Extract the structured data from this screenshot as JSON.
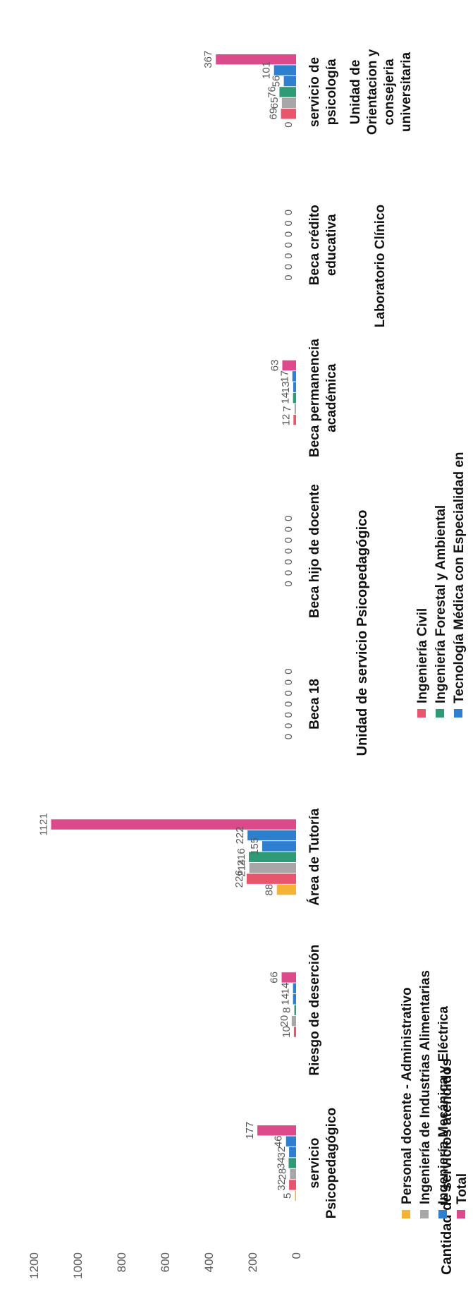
{
  "chart_data": {
    "type": "bar",
    "title": "",
    "ylabel": "Cantidad de servicios atendidos",
    "xlabel": "Unidad de servicio Psicopedagógico",
    "ylim": [
      0,
      1200
    ],
    "yticks": [
      0,
      200,
      400,
      600,
      800,
      1000,
      1200
    ],
    "grid": false,
    "legend_position": "bottom",
    "categories": [
      [
        "servicio",
        "Psicopedagógico"
      ],
      [
        "Riesgo de deserción"
      ],
      [
        "Área de Tutoría"
      ],
      [
        "Beca 18"
      ],
      [
        "Beca hijo de docente"
      ],
      [
        "Beca permanencia",
        "académica"
      ],
      [
        "Beca crédito",
        "educativa"
      ],
      [
        "servicio de",
        "psicología"
      ]
    ],
    "extra_category_text": [
      [
        "Unidad de",
        "Orientacion y",
        "consejeria",
        "universitaria"
      ],
      [
        "Laboratorio Clínico"
      ]
    ],
    "series": [
      {
        "name": "Personal docente - Administrativo",
        "color": "#f5b335",
        "values": [
          5,
          0,
          88,
          0,
          0,
          0,
          0,
          0
        ]
      },
      {
        "name": "Ingeniería Civil",
        "color": "#e8566e",
        "values": [
          32,
          10,
          226,
          0,
          0,
          12,
          0,
          69
        ]
      },
      {
        "name": "Ingeniería de Industrias Alimentarias",
        "color": "#a7a7a7",
        "values": [
          28,
          20,
          214,
          0,
          0,
          7,
          0,
          65
        ]
      },
      {
        "name": "Ingeniería Forestal y Ambiental",
        "color": "#2e9a76",
        "values": [
          34,
          8,
          216,
          0,
          0,
          14,
          0,
          76
        ]
      },
      {
        "name": "Ingeniería Mecánica y Eléctrica",
        "color": "#2f7fd0",
        "values": [
          32,
          14,
          155,
          0,
          0,
          13,
          0,
          56
        ]
      },
      {
        "name": "Tecnología Médica con Especialidad en",
        "color": "#2f7fd0",
        "values": [
          46,
          14,
          222,
          0,
          0,
          17,
          0,
          101
        ]
      },
      {
        "name": "Total",
        "color": "#dc4a8c",
        "values": [
          177,
          66,
          1121,
          0,
          0,
          63,
          0,
          367
        ]
      }
    ],
    "visible_data_labels": [
      [
        "5",
        "32",
        "28",
        "34",
        "32",
        "46",
        "177"
      ],
      [
        "",
        "10",
        "20",
        "8",
        "14",
        "14",
        "66"
      ],
      [
        "88",
        "226",
        "214",
        "216",
        "155",
        "222",
        "1121"
      ],
      [
        "0",
        "0",
        "0",
        "0",
        "0",
        "0",
        "0"
      ],
      [
        "0",
        "0",
        "0",
        "0",
        "0",
        "0",
        "0"
      ],
      [
        "",
        "12",
        "7",
        "14",
        "13",
        "17",
        "63"
      ],
      [
        "0",
        "0",
        "0",
        "0",
        "0",
        "0",
        "0"
      ],
      [
        "0",
        "69",
        "65",
        "76",
        "56",
        "101",
        "367"
      ]
    ],
    "legend_left": [
      "Personal docente - Administrativo",
      "Ingeniería de Industrias Alimentarias",
      "Ingeniería Mecánica y   Eléctrica",
      "Total"
    ],
    "legend_right": [
      "Ingeniería Civil",
      "Ingeniería Forestal y Ambiental",
      "Tecnología Médica  con Especialidad  en"
    ]
  }
}
